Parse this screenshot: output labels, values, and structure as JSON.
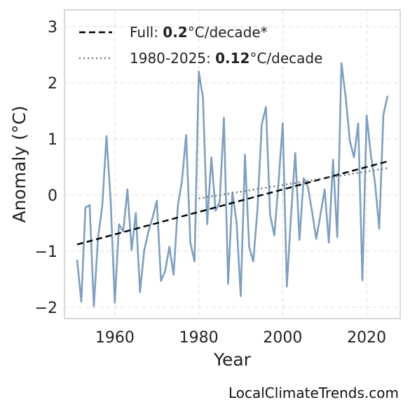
{
  "chart_data": {
    "type": "line",
    "xlabel": "Year",
    "ylabel": "Anomaly (°C)",
    "xlim": [
      1948,
      2028
    ],
    "ylim": [
      -2.2,
      3.3
    ],
    "xticks": [
      1960,
      1980,
      2000,
      2020
    ],
    "yticks": [
      -2,
      -1,
      0,
      1,
      2,
      3
    ],
    "ytick_labels": [
      "−2",
      "−1",
      "0",
      "1",
      "2",
      "3"
    ],
    "grid": true,
    "legend_position": "top-left",
    "source": "LocalClimateTrends.com",
    "series": [
      {
        "kind": "anomaly",
        "color": "#7f9fc0",
        "x": [
          1951,
          1952,
          1953,
          1954,
          1955,
          1956,
          1957,
          1958,
          1959,
          1960,
          1961,
          1962,
          1963,
          1964,
          1965,
          1966,
          1967,
          1968,
          1969,
          1970,
          1971,
          1972,
          1973,
          1974,
          1975,
          1976,
          1977,
          1978,
          1979,
          1980,
          1981,
          1982,
          1983,
          1984,
          1985,
          1986,
          1987,
          1988,
          1989,
          1990,
          1991,
          1992,
          1993,
          1994,
          1995,
          1996,
          1997,
          1998,
          1999,
          2000,
          2001,
          2002,
          2003,
          2004,
          2005,
          2006,
          2007,
          2008,
          2009,
          2010,
          2011,
          2012,
          2013,
          2014,
          2015,
          2016,
          2017,
          2018,
          2019,
          2020,
          2021,
          2022,
          2023,
          2024,
          2025
        ],
        "y": [
          -1.15,
          -1.9,
          -0.22,
          -0.18,
          -1.98,
          -0.75,
          -0.2,
          1.05,
          -0.1,
          -1.92,
          -0.52,
          -0.65,
          0.1,
          -0.98,
          -0.32,
          -1.73,
          -0.98,
          -0.65,
          -0.4,
          -0.1,
          -1.53,
          -1.35,
          -0.92,
          -1.42,
          -0.2,
          0.25,
          1.07,
          -0.85,
          -1.18,
          2.2,
          1.73,
          -0.52,
          0.67,
          -0.28,
          -0.12,
          1.38,
          -1.58,
          0.05,
          -0.48,
          -1.8,
          0.72,
          -0.92,
          -1.18,
          -0.25,
          1.25,
          1.57,
          -0.35,
          -0.72,
          0.22,
          1.28,
          -1.63,
          -0.35,
          0.75,
          -0.8,
          0.3,
          0.15,
          -0.3,
          -0.78,
          -0.35,
          0.1,
          -0.85,
          0.63,
          -0.75,
          2.35,
          1.75,
          0.97,
          0.67,
          1.28,
          -1.52,
          1.42,
          0.72,
          0.22,
          -0.6,
          1.43,
          1.77
        ]
      },
      {
        "kind": "trend",
        "name": "Full: 0.2°C/decade*",
        "color": "#000000",
        "style": "dashed",
        "x": [
          1951,
          2025
        ],
        "y": [
          -0.88,
          0.6
        ]
      },
      {
        "kind": "trend",
        "name": "1980-2025: 0.12°C/decade",
        "color": "#7a7a7a",
        "style": "dotted",
        "x": [
          1980,
          2025
        ],
        "y": [
          -0.06,
          0.48
        ]
      }
    ],
    "legend": [
      {
        "prefix": "Full: ",
        "bold": "0.2",
        "suffix": "°C/decade*",
        "style": "dashed",
        "color": "#000000"
      },
      {
        "prefix": "1980-2025: ",
        "bold": "0.12",
        "suffix": "°C/decade",
        "style": "dotted",
        "color": "#7a7a7a"
      }
    ]
  }
}
